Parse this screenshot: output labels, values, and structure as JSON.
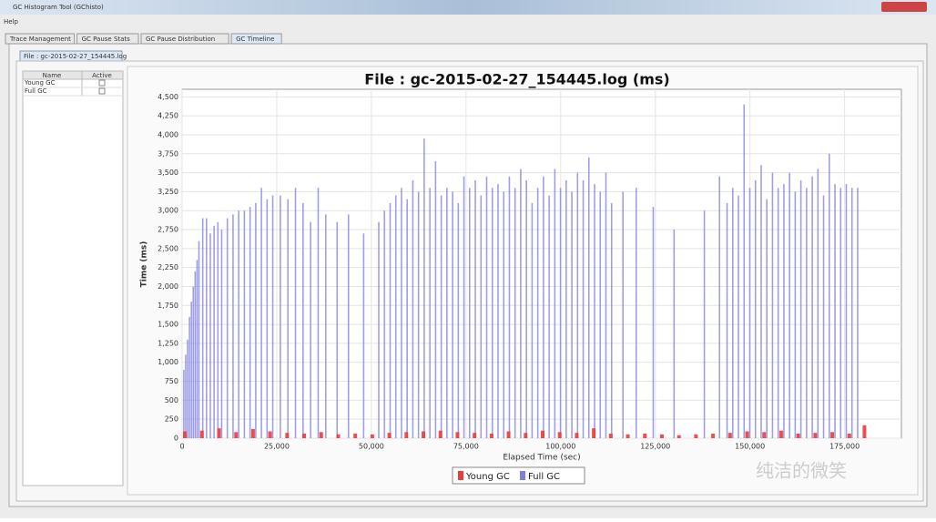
{
  "window": {
    "title": "GC Histogram Tool (GChisto)",
    "menu": [
      "Help"
    ]
  },
  "tabs": [
    "Trace Management",
    "GC Pause Stats",
    "GC Pause Distribution",
    "GC Timeline"
  ],
  "file_tab": "File : gc-2015-02-27_154445.log",
  "table": {
    "headers": [
      "Name",
      "Active"
    ],
    "rows": [
      [
        "Young GC"
      ],
      [
        "Full GC"
      ]
    ]
  },
  "watermark": "纯洁的微笑",
  "chart_data": {
    "type": "bar",
    "title": "File : gc-2015-02-27_154445.log (ms)",
    "x_label": "Elapsed Time (sec)",
    "y_label": "Time (ms)",
    "xlim": [
      0,
      190000
    ],
    "xticks": [
      0,
      {
        "value": 25000,
        "label": "25,000"
      },
      {
        "value": 50000,
        "label": "50,000"
      },
      {
        "value": 75000,
        "label": "75,000"
      },
      {
        "value": 100000,
        "label": "100,000"
      },
      {
        "value": 125000,
        "label": "125,000"
      },
      {
        "value": 150000,
        "label": "150,000"
      },
      {
        "value": 175000,
        "label": "175,000"
      }
    ],
    "ylim": [
      0,
      4600
    ],
    "yticks": [
      0,
      250,
      500,
      750,
      {
        "value": 1000,
        "label": "1,000"
      },
      {
        "value": 1250,
        "label": "1,250"
      },
      {
        "value": 1500,
        "label": "1,500"
      },
      {
        "value": 1750,
        "label": "1,750"
      },
      {
        "value": 2000,
        "label": "2,000"
      },
      {
        "value": 2250,
        "label": "2,250"
      },
      {
        "value": 2500,
        "label": "2,500"
      },
      {
        "value": 2750,
        "label": "2,750"
      },
      {
        "value": 3000,
        "label": "3,000"
      },
      {
        "value": 3250,
        "label": "3,250"
      },
      {
        "value": 3500,
        "label": "3,500"
      },
      {
        "value": 3750,
        "label": "3,750"
      },
      {
        "value": 4000,
        "label": "4,000"
      },
      {
        "value": 4250,
        "label": "4,250"
      },
      {
        "value": 4500,
        "label": "4,500"
      }
    ],
    "grid": true,
    "legend": "bottom",
    "series": [
      {
        "name": "Young GC",
        "color": "#ee3b3b",
        "x": [
          500,
          5000,
          9500,
          14000,
          18500,
          23000,
          27500,
          32000,
          36500,
          41000,
          45500,
          50000,
          54500,
          59000,
          63500,
          68000,
          72500,
          77000,
          81500,
          86000,
          90500,
          95000,
          99500,
          104000,
          108500,
          113000,
          117500,
          122000,
          126500,
          131000,
          135500,
          140000,
          144500,
          149000,
          153500,
          158000,
          162500,
          167000,
          171500,
          176000,
          180000
        ],
        "values": [
          90,
          100,
          130,
          80,
          120,
          90,
          70,
          60,
          80,
          50,
          60,
          50,
          70,
          80,
          90,
          100,
          80,
          70,
          60,
          90,
          70,
          100,
          80,
          70,
          130,
          60,
          50,
          60,
          50,
          40,
          50,
          60,
          70,
          90,
          80,
          100,
          60,
          70,
          80,
          60,
          170
        ]
      },
      {
        "name": "Full GC",
        "color": "#7f7fdf",
        "x": [
          500,
          1000,
          1500,
          2000,
          2500,
          3000,
          3500,
          4000,
          4500,
          5500,
          6500,
          7500,
          8500,
          9500,
          10500,
          12000,
          13500,
          15000,
          16500,
          18000,
          19500,
          21000,
          22500,
          24000,
          26000,
          28000,
          30000,
          32000,
          34000,
          36000,
          38000,
          41000,
          44000,
          48000,
          52000,
          53500,
          55000,
          56500,
          58000,
          59500,
          61000,
          62500,
          64000,
          65500,
          67000,
          68500,
          70000,
          71500,
          73000,
          74500,
          76000,
          77500,
          79000,
          80500,
          82000,
          83500,
          85000,
          86500,
          88000,
          89500,
          91000,
          92500,
          94000,
          95500,
          97000,
          98500,
          100000,
          101500,
          103000,
          104500,
          106000,
          107500,
          109000,
          110500,
          112000,
          113500,
          116500,
          120000,
          124500,
          130000,
          138000,
          142000,
          144000,
          145500,
          147000,
          148500,
          150000,
          151500,
          153000,
          154500,
          156000,
          157500,
          159000,
          160500,
          162000,
          163500,
          165000,
          166500,
          168000,
          169500,
          171000,
          172500,
          174000,
          175500,
          177000,
          178500
        ],
        "values": [
          900,
          1100,
          1300,
          1600,
          1800,
          2000,
          2200,
          2350,
          2600,
          2900,
          2900,
          2700,
          2800,
          2850,
          2750,
          2900,
          2950,
          3000,
          3000,
          3050,
          3100,
          3300,
          3150,
          3200,
          3200,
          3150,
          3300,
          3100,
          2850,
          3300,
          2950,
          2850,
          2950,
          2700,
          2850,
          3000,
          3100,
          3200,
          3300,
          3150,
          3400,
          3250,
          3950,
          3300,
          3650,
          3200,
          3300,
          3250,
          3100,
          3450,
          3300,
          3400,
          3200,
          3450,
          3300,
          3350,
          3250,
          3450,
          3300,
          3550,
          3400,
          3100,
          3300,
          3450,
          3200,
          3550,
          3300,
          3400,
          3250,
          3500,
          3400,
          3700,
          3350,
          3250,
          3500,
          3100,
          3250,
          3300,
          3050,
          2750,
          3000,
          3450,
          3100,
          3300,
          3200,
          4400,
          3300,
          3400,
          3600,
          3150,
          3500,
          3300,
          3350,
          3500,
          3250,
          3400,
          3300,
          3450,
          3550,
          3200,
          3750,
          3350,
          3300,
          3350,
          3300,
          3300
        ]
      }
    ]
  }
}
